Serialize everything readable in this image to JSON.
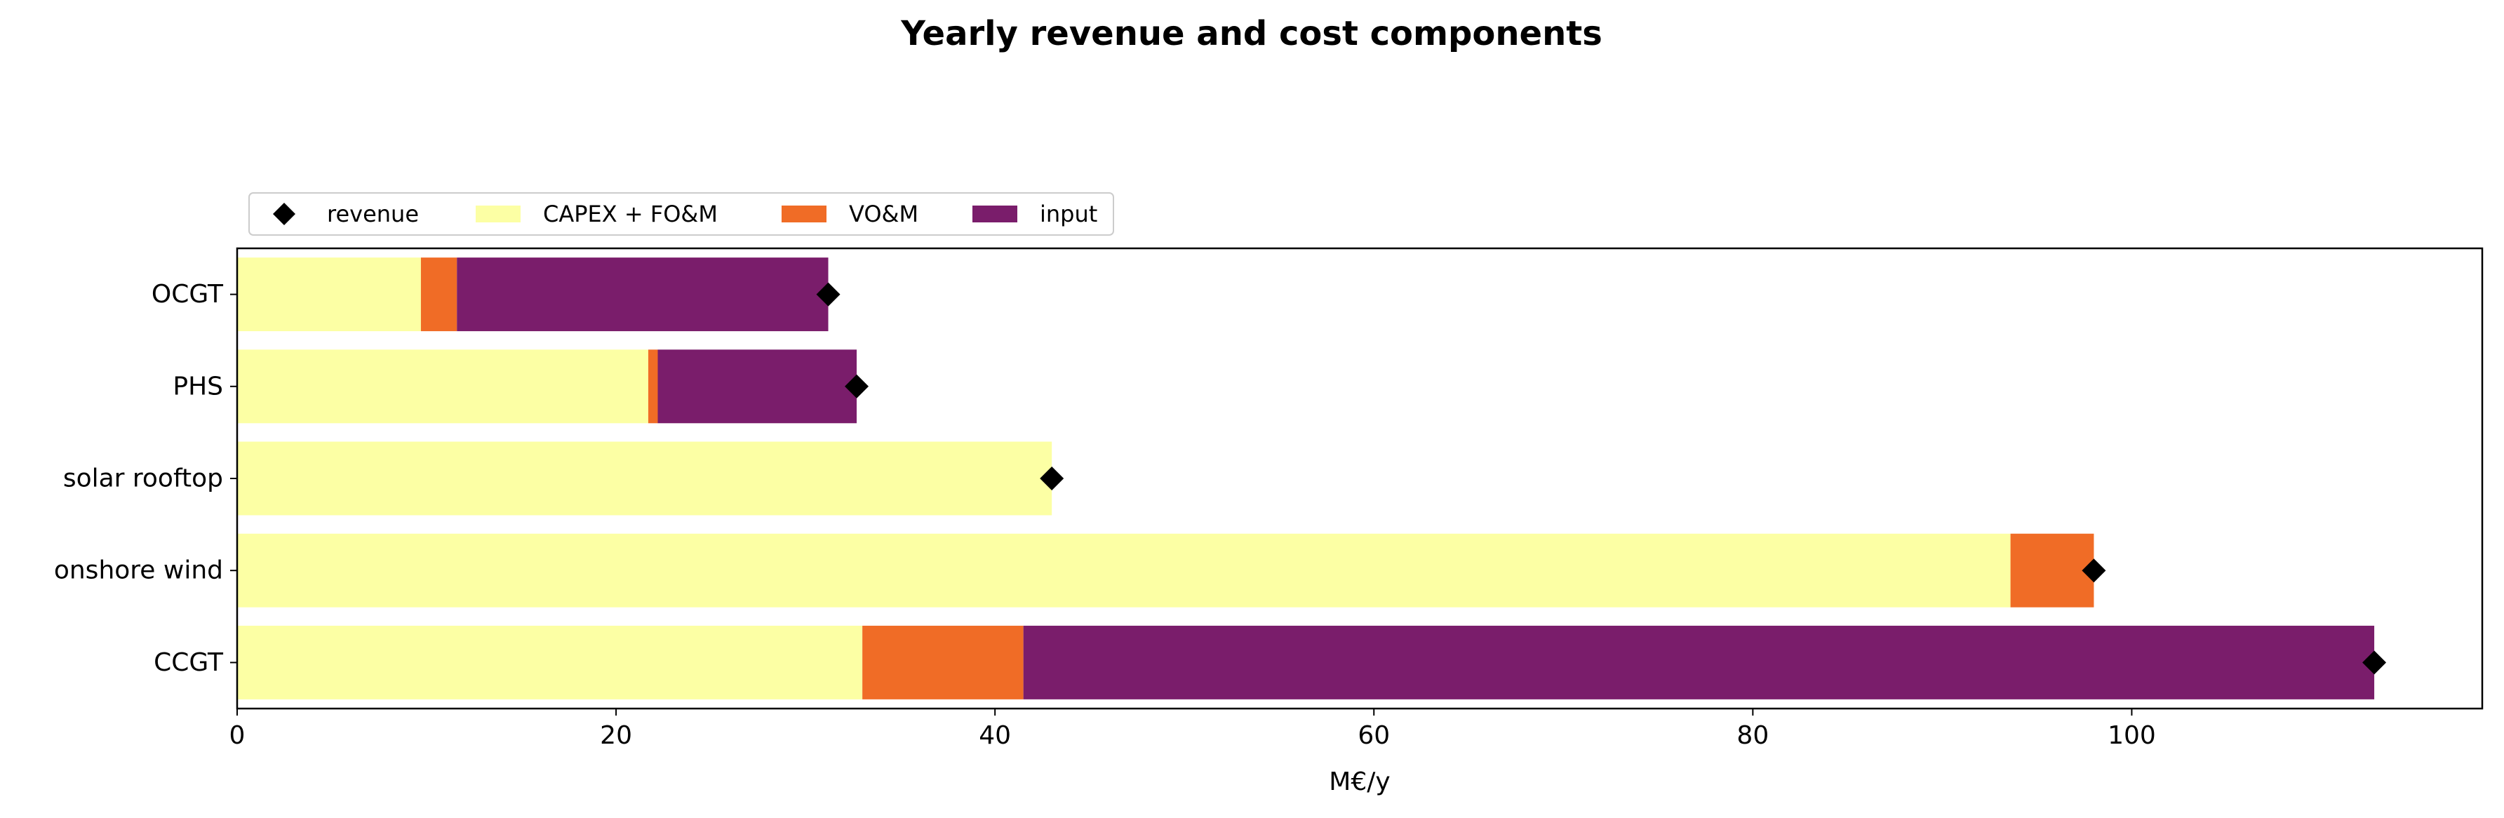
{
  "chart_data": {
    "type": "bar",
    "orientation": "horizontal",
    "stacked": true,
    "title": "Yearly revenue and cost components",
    "xlabel": "M€/y",
    "ylabel": "",
    "xlim": [
      0,
      118.5
    ],
    "xticks": [
      0,
      20,
      40,
      60,
      80,
      100
    ],
    "xtick_labels": [
      "0",
      "20",
      "40",
      "60",
      "80",
      "100"
    ],
    "grid": false,
    "legend_placement": "top-left, above plot",
    "categories": [
      "OCGT",
      "PHS",
      "solar rooftop",
      "onshore wind",
      "CCGT"
    ],
    "series": [
      {
        "name": "CAPEX + FO&M",
        "color": "#fcffa4",
        "values": [
          9.7,
          21.7,
          43.0,
          93.6,
          33.0
        ]
      },
      {
        "name": "VO&M",
        "color": "#f06c26",
        "values": [
          1.9,
          0.5,
          0.0,
          4.4,
          8.5
        ]
      },
      {
        "name": "input",
        "color": "#7a1d6b",
        "values": [
          19.6,
          10.5,
          0.0,
          0.0,
          71.3
        ]
      }
    ],
    "markers": {
      "name": "revenue",
      "color": "#000000",
      "shape": "diamond",
      "values": [
        31.2,
        32.7,
        43.0,
        98.0,
        112.8
      ]
    }
  }
}
